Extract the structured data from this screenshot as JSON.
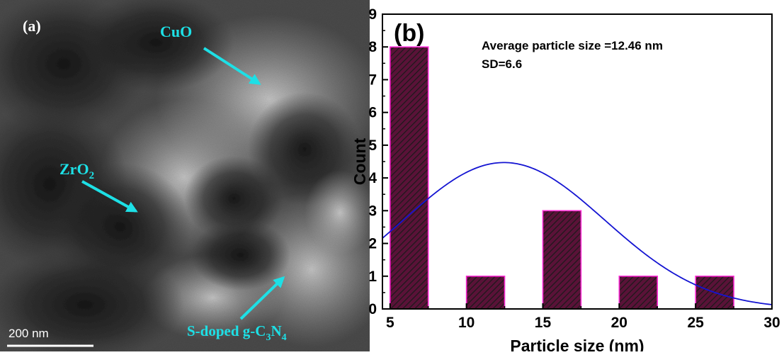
{
  "micrograph": {
    "panel_label": "(a)",
    "scale_bar": {
      "label": "200 nm"
    },
    "annotations": [
      {
        "label": "CuO",
        "sub": "",
        "tail": ""
      },
      {
        "label": "ZrO",
        "sub": "2",
        "tail": ""
      },
      {
        "label": "S-doped g-C",
        "sub": "3",
        "mid": "N",
        "sub2": "4"
      }
    ],
    "colors": {
      "annotation": "#1de0e6",
      "scale_bar": "#ffffff"
    }
  },
  "chart_data": {
    "type": "bar",
    "panel_label": "(b)",
    "annotations": [
      "Average particle size =12.46 nm",
      "SD=6.6"
    ],
    "xlabel": "Particle size (nm)",
    "ylabel": "Count",
    "xlim": [
      4.5,
      30
    ],
    "ylim": [
      0,
      9
    ],
    "xticks": [
      5,
      10,
      15,
      20,
      25,
      30
    ],
    "yticks": [
      0,
      1,
      2,
      3,
      4,
      5,
      6,
      7,
      8,
      9
    ],
    "bins": [
      {
        "start": 5,
        "end": 7.5,
        "count": 8
      },
      {
        "start": 10,
        "end": 12.5,
        "count": 1
      },
      {
        "start": 15,
        "end": 17.5,
        "count": 3
      },
      {
        "start": 20,
        "end": 22.5,
        "count": 1
      },
      {
        "start": 25,
        "end": 27.5,
        "count": 1
      }
    ],
    "fit": {
      "type": "normal",
      "mean": 12.46,
      "sd": 6.6,
      "peak": 4.47
    },
    "colors": {
      "bar_fill": "#5a1238",
      "bar_edge": "#ff2bd6",
      "hatch": "#1a1a1a",
      "fit_line": "#1414d2"
    }
  }
}
